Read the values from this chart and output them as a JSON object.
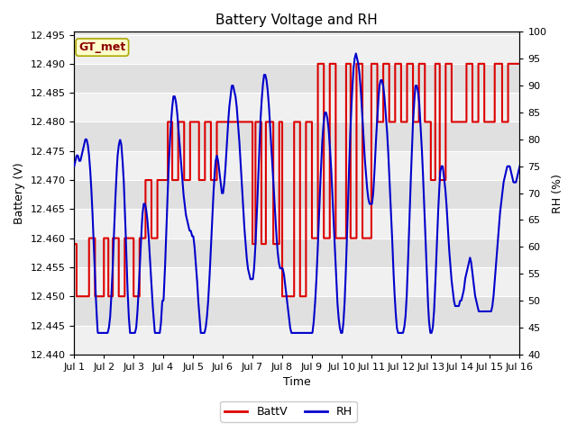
{
  "title": "Battery Voltage and RH",
  "xlabel": "Time",
  "ylabel_left": "Battery (V)",
  "ylabel_right": "RH (%)",
  "annotation": "GT_met",
  "ylim_left": [
    12.44,
    12.4955
  ],
  "ylim_right": [
    40,
    100
  ],
  "yticks_left": [
    12.44,
    12.445,
    12.45,
    12.455,
    12.46,
    12.465,
    12.47,
    12.475,
    12.48,
    12.485,
    12.49,
    12.495
  ],
  "yticks_right": [
    40,
    45,
    50,
    55,
    60,
    65,
    70,
    75,
    80,
    85,
    90,
    95,
    100
  ],
  "xtick_labels": [
    "Jul 1",
    "Jul 2",
    "Jul 3",
    "Jul 4",
    "Jul 5",
    "Jul 6",
    "Jul 7",
    "Jul 8",
    "Jul 9",
    "Jul 10",
    "Jul 11",
    "Jul 12",
    "Jul 13",
    "Jul 14",
    "Jul 15",
    "Jul 16"
  ],
  "plot_bg_light": "#e8e8e8",
  "plot_bg_dark": "#d0d0d0",
  "grid_color": "#ffffff",
  "battv_color": "#dd0000",
  "rh_color": "#0000cc",
  "legend_battv": "BattV",
  "legend_rh": "RH",
  "title_fontsize": 11,
  "label_fontsize": 9,
  "tick_fontsize": 8
}
